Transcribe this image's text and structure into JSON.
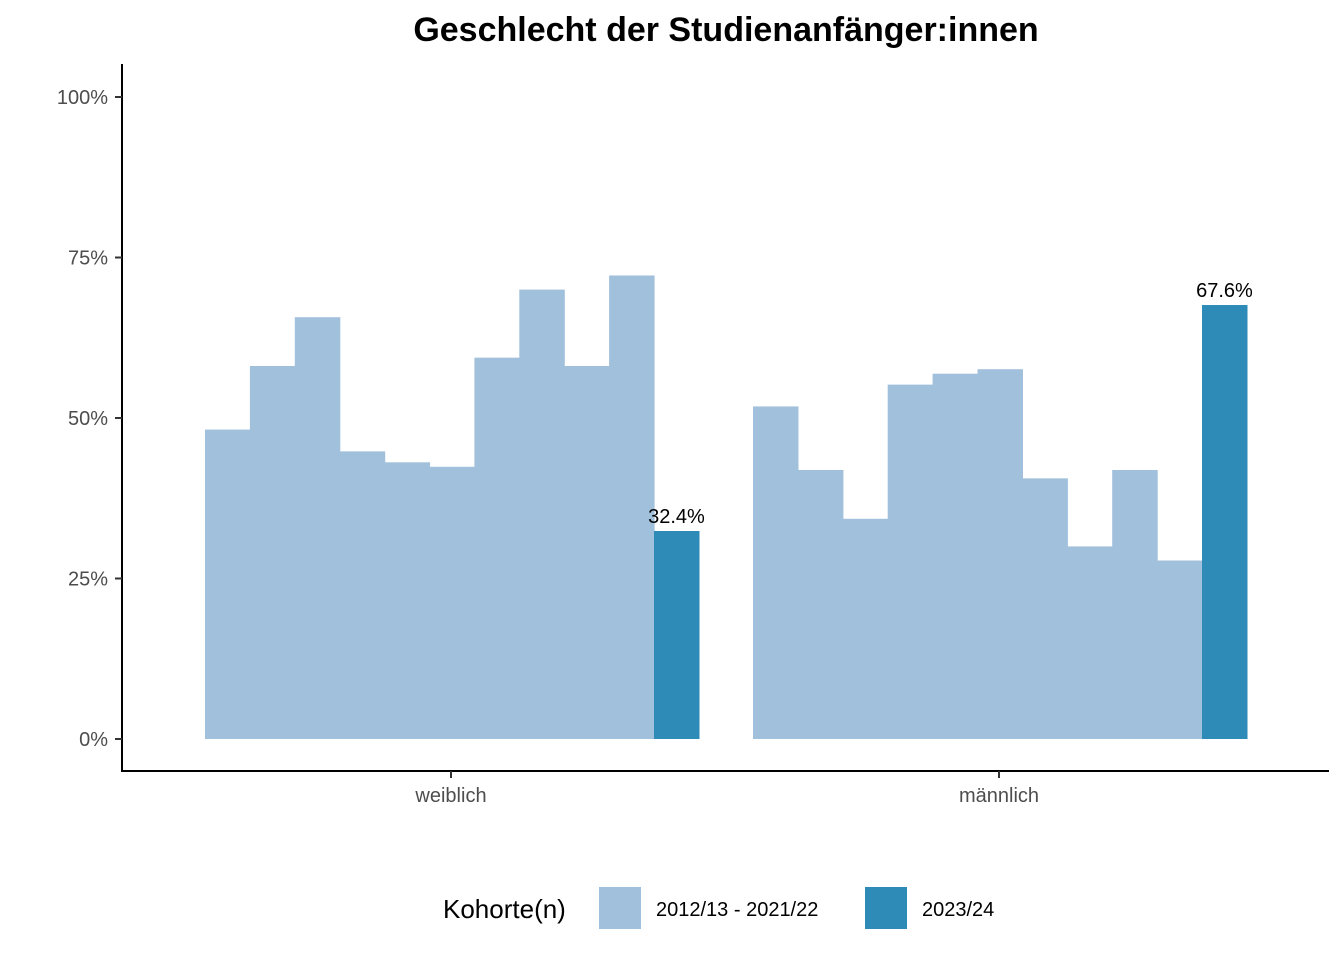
{
  "chart_data": {
    "type": "bar",
    "title": "Geschlecht der Studienanfänger:innen",
    "xlabel": "",
    "ylabel": "",
    "categories": [
      "weiblich",
      "männlich"
    ],
    "ylim": [
      0,
      1.0
    ],
    "y_ticks": [
      {
        "value": 0,
        "label": "0%"
      },
      {
        "value": 0.25,
        "label": "25%"
      },
      {
        "value": 0.5,
        "label": "50%"
      },
      {
        "value": 0.75,
        "label": "75%"
      },
      {
        "value": 1.0,
        "label": "100%"
      }
    ],
    "grid": false,
    "legend_position": "bottom",
    "legend_title": "Kohorte(n)",
    "series": [
      {
        "name": "2012/13 - 2021/22",
        "color": "#a1c0dc",
        "values": {
          "weiblich": [
            0.482,
            0.581,
            0.657,
            0.448,
            0.431,
            0.424,
            0.594,
            0.7,
            0.581,
            0.722
          ],
          "männlich": [
            0.518,
            0.419,
            0.343,
            0.552,
            0.569,
            0.576,
            0.406,
            0.3,
            0.419,
            0.278
          ]
        }
      },
      {
        "name": "2023/24",
        "color": "#2e8bb7",
        "values": {
          "weiblich": [
            0.324
          ],
          "männlich": [
            0.676
          ]
        },
        "data_labels": {
          "weiblich": "32.4%",
          "männlich": "67.6%"
        }
      }
    ]
  }
}
